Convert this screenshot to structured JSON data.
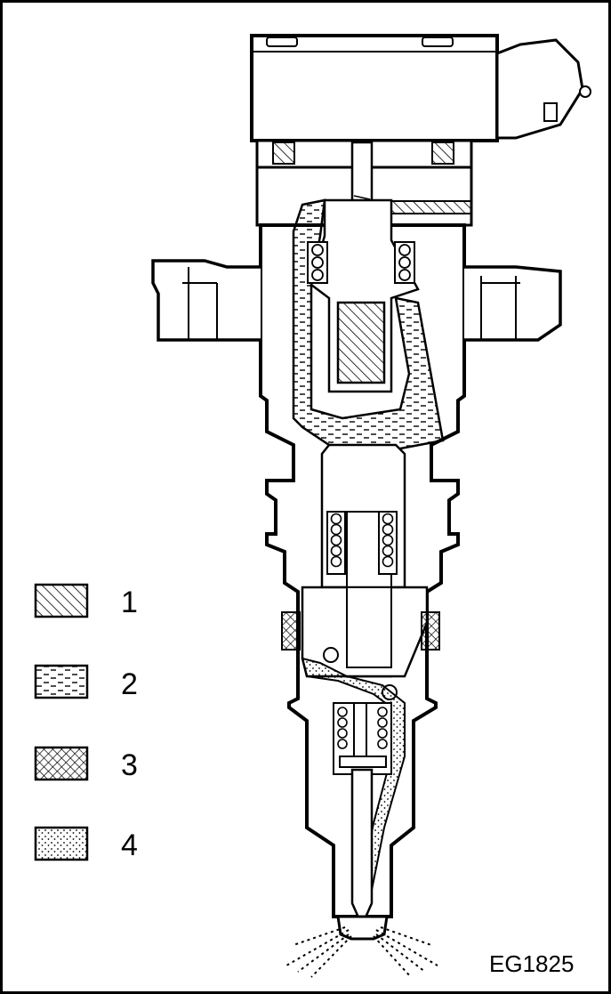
{
  "figure": {
    "code": "EG1825"
  },
  "legend": [
    {
      "number": "1",
      "pattern": "diagonal-hatch"
    },
    {
      "number": "2",
      "pattern": "wavy-dash-lines"
    },
    {
      "number": "3",
      "pattern": "crosshatch"
    },
    {
      "number": "4",
      "pattern": "stipple-dots"
    }
  ],
  "colors": {
    "ink": "#000000",
    "paper": "#ffffff"
  }
}
